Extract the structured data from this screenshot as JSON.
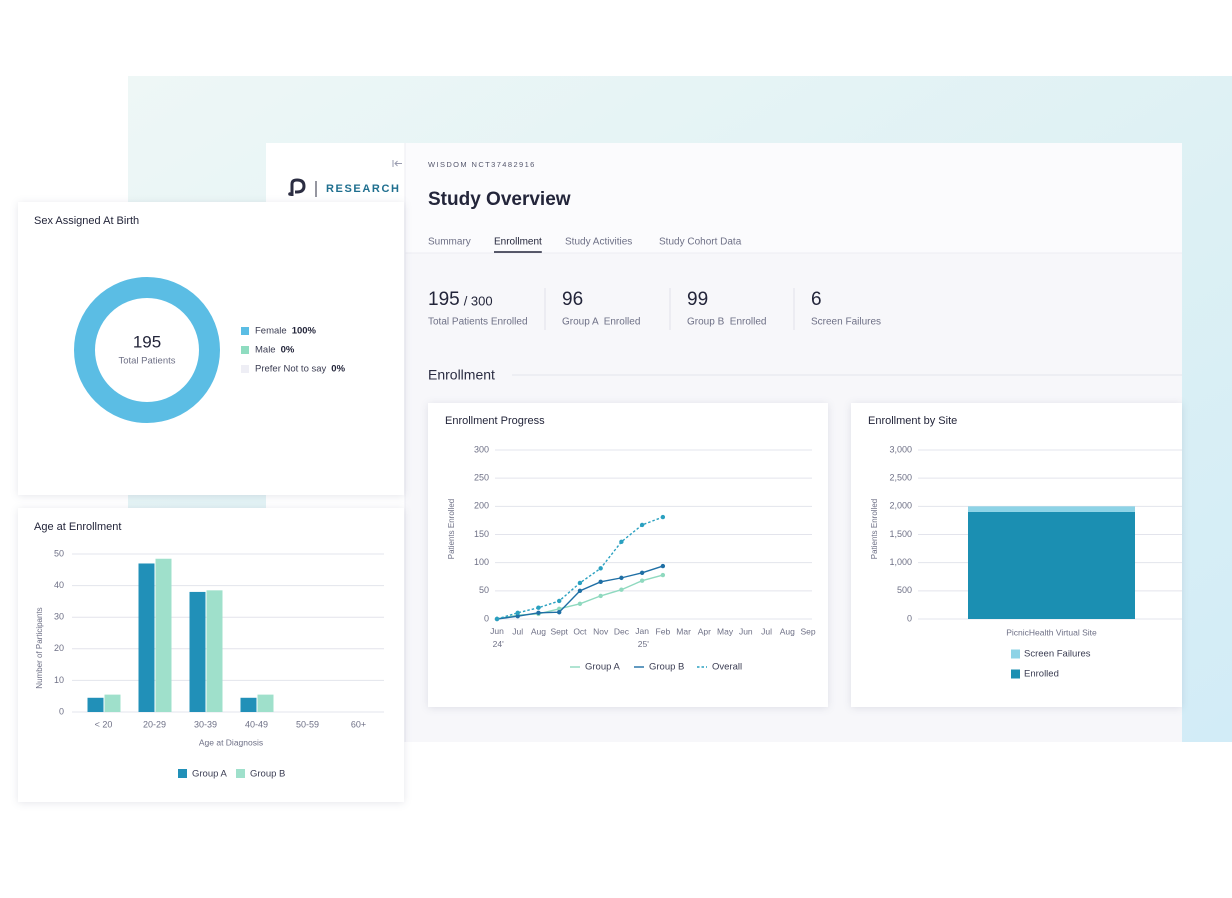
{
  "logo_text": "RESEARCH",
  "study_id": "WISDOM NCT37482916",
  "title": "Study Overview",
  "tabs": [
    "Summary",
    "Enrollment",
    "Study Activities",
    "Study Cohort Data"
  ],
  "stats": [
    {
      "value": 195,
      "total": "/ 300",
      "label": "Total Patients Enrolled"
    },
    {
      "value": 96,
      "label": "Group A  Enrolled"
    },
    {
      "value": 99,
      "label": "Group B  Enrolled"
    },
    {
      "value": 6,
      "label": "Screen Failures"
    }
  ],
  "section_title": "Enrollment",
  "chart_data": [
    {
      "type": "pie",
      "title": "Sex Assigned At Birth",
      "center_value": 195,
      "center_label": "Total Patients",
      "categories": [
        "Female",
        "Male",
        "Prefer Not to say"
      ],
      "values": [
        100,
        0,
        0
      ],
      "value_labels": [
        "100%",
        "0%",
        "0%"
      ],
      "colors": [
        "#5bbde4",
        "#8fdcc0",
        "#eeeef5"
      ]
    },
    {
      "type": "bar",
      "title": "Age at Enrollment",
      "categories": [
        "< 20",
        "20-29",
        "30-39",
        "40-49",
        "50-59",
        "60+"
      ],
      "series": [
        {
          "name": "Group A",
          "color": "#2190b8",
          "values": [
            4.5,
            47,
            38,
            4.5,
            0,
            0
          ]
        },
        {
          "name": "Group B",
          "color": "#9fe0cb",
          "values": [
            5.5,
            48.5,
            38.5,
            5.5,
            0,
            0
          ]
        }
      ],
      "xlabel": "Age at Diagnosis",
      "ylabel": "Number of Participants",
      "ylim": [
        0,
        50
      ],
      "yticks": [
        0,
        10,
        20,
        30,
        40,
        50
      ],
      "grid": true
    },
    {
      "type": "line",
      "title": "Enrollment Progress",
      "categories": [
        "Jun 24'",
        "Jul",
        "Aug",
        "Sept",
        "Oct",
        "Nov",
        "Dec",
        "Jan 25'",
        "Feb",
        "Mar",
        "Apr",
        "May",
        "Jun",
        "Jul",
        "Aug",
        "Sep"
      ],
      "series": [
        {
          "name": "Group A",
          "color": "#8fd9bf",
          "dash": false,
          "values": [
            0,
            7,
            9,
            18,
            27,
            41,
            52,
            68,
            78,
            null,
            null,
            null,
            null,
            null,
            null,
            null
          ]
        },
        {
          "name": "Group B",
          "color": "#1f6fa5",
          "dash": false,
          "values": [
            0,
            5,
            11,
            12,
            50,
            66,
            73,
            82,
            94,
            null,
            null,
            null,
            null,
            null,
            null,
            null
          ]
        },
        {
          "name": "Overall",
          "color": "#2aa0c0",
          "dash": true,
          "values": [
            0,
            11,
            20,
            32,
            64,
            90,
            137,
            167,
            181,
            null,
            null,
            null,
            null,
            null,
            null,
            null
          ]
        }
      ],
      "ylabel": "Patients Enrolled",
      "ylim": [
        0,
        300
      ],
      "yticks": [
        0,
        50,
        100,
        150,
        200,
        250,
        300
      ],
      "grid": true
    },
    {
      "type": "stacked_bar",
      "title": "Enrollment by Site",
      "categories": [
        "PicnicHealth Virtual Site"
      ],
      "series": [
        {
          "name": "Enrolled",
          "color": "#1b8fb2",
          "values": [
            1900
          ]
        },
        {
          "name": "Screen Failures",
          "color": "#8dd3e6",
          "values": [
            100
          ]
        }
      ],
      "ylabel": "Patients Enrolled",
      "ylim": [
        0,
        3000
      ],
      "yticks": [
        0,
        500,
        {
          "value": 1000,
          "label": "1,000"
        },
        {
          "value": 1500,
          "label": "1,500"
        },
        {
          "value": 2000,
          "label": "2,000"
        },
        {
          "value": 2500,
          "label": "2,500"
        },
        {
          "value": 3000,
          "label": "3,000"
        }
      ],
      "grid": true
    }
  ]
}
